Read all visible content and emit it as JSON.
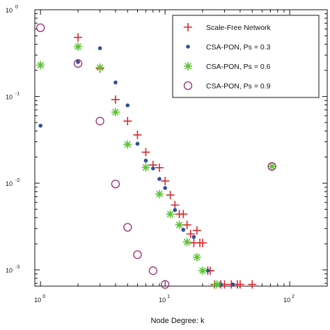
{
  "chart_data": {
    "type": "scatter",
    "title": "",
    "xlabel": "Node Degree: k",
    "ylabel": "",
    "x_scale": "log",
    "y_scale": "log",
    "xlim": [
      0.9,
      200
    ],
    "ylim": [
      0.00065,
      1.0
    ],
    "x_ticks": [
      {
        "value": 1,
        "base": "10",
        "exp": "0"
      },
      {
        "value": 10,
        "base": "10",
        "exp": "1"
      },
      {
        "value": 100,
        "base": "10",
        "exp": "2"
      }
    ],
    "y_ticks": [
      {
        "value": 1,
        "base": "10",
        "exp": "0"
      },
      {
        "value": 0.1,
        "base": "10",
        "exp": "-1"
      },
      {
        "value": 0.01,
        "base": "10",
        "exp": "-2"
      },
      {
        "value": 0.001,
        "base": "10",
        "exp": "-3"
      }
    ],
    "legend_position": "top-right",
    "series": [
      {
        "name": "Scale-Free Network",
        "marker": "plus",
        "color": "#d8282e",
        "points": [
          [
            2,
            0.48
          ],
          [
            3,
            0.21
          ],
          [
            4,
            0.092
          ],
          [
            5,
            0.052
          ],
          [
            6,
            0.036
          ],
          [
            7,
            0.0228
          ],
          [
            8,
            0.0162
          ],
          [
            9,
            0.0151
          ],
          [
            10,
            0.0106
          ],
          [
            11,
            0.0073
          ],
          [
            12,
            0.0056
          ],
          [
            13,
            0.0044
          ],
          [
            14,
            0.0044
          ],
          [
            15,
            0.0033
          ],
          [
            16,
            0.0026
          ],
          [
            17,
            0.00205
          ],
          [
            18,
            0.00285
          ],
          [
            19,
            0.00205
          ],
          [
            20,
            0.00205
          ],
          [
            22,
            0.00098
          ],
          [
            23,
            0.00098
          ],
          [
            25,
            0.00068
          ],
          [
            28,
            0.00068
          ],
          [
            30,
            0.00068
          ],
          [
            34,
            0.00068
          ],
          [
            38,
            0.00068
          ],
          [
            40,
            0.00068
          ],
          [
            50,
            0.00068
          ]
        ]
      },
      {
        "name": "CSA-PON, Ps = 0.3",
        "marker": "dot",
        "color": "#2e4e9a",
        "points": [
          [
            1,
            0.046
          ],
          [
            2,
            0.25
          ],
          [
            3,
            0.36
          ],
          [
            4,
            0.145
          ],
          [
            5,
            0.079
          ],
          [
            6,
            0.0285
          ],
          [
            7,
            0.0182
          ],
          [
            8,
            0.0148
          ],
          [
            9,
            0.0112
          ],
          [
            10,
            0.0088
          ],
          [
            12,
            0.0049
          ],
          [
            14,
            0.0029
          ],
          [
            17,
            0.0024
          ],
          [
            22,
            0.00098
          ],
          [
            28,
            0.00068
          ],
          [
            35,
            0.00068
          ]
        ]
      },
      {
        "name": "CSA-PON, Ps = 0.6",
        "marker": "asterisk",
        "color": "#5bc234",
        "points": [
          [
            1,
            0.23
          ],
          [
            2,
            0.375
          ],
          [
            3,
            0.215
          ],
          [
            4,
            0.066
          ],
          [
            5,
            0.028
          ],
          [
            7,
            0.0152
          ],
          [
            9,
            0.0075
          ],
          [
            11,
            0.0044
          ],
          [
            13,
            0.0033
          ],
          [
            15,
            0.0021
          ],
          [
            18,
            0.0014
          ],
          [
            20,
            0.00098
          ],
          [
            26,
            0.00068
          ],
          [
            72,
            0.0156
          ]
        ]
      },
      {
        "name": "CSA-PON, Ps = 0.9",
        "marker": "circle",
        "color": "#9c2a72",
        "points": [
          [
            1,
            0.62
          ],
          [
            2,
            0.24
          ],
          [
            3,
            0.052
          ],
          [
            4,
            0.0098
          ],
          [
            5,
            0.0031
          ],
          [
            6,
            0.0015
          ],
          [
            8,
            0.00098
          ],
          [
            10,
            0.00068
          ],
          [
            72,
            0.0156
          ]
        ]
      }
    ]
  }
}
